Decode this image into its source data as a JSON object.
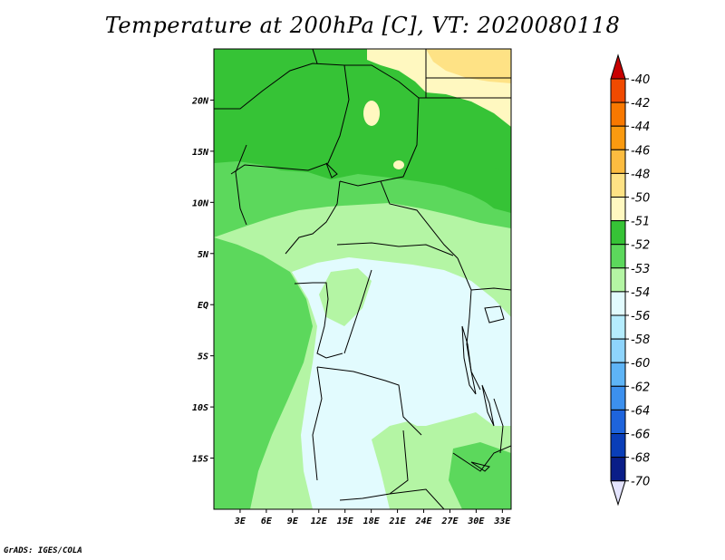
{
  "title": "Temperature at 200hPa [C], VT: 2020080118",
  "credit": "GrADS: IGES/COLA",
  "map": {
    "lon_range": [
      0,
      34
    ],
    "lat_range": [
      -20,
      25
    ],
    "lon_ticks": [
      {
        "value": 3,
        "label": "3E"
      },
      {
        "value": 6,
        "label": "6E"
      },
      {
        "value": 9,
        "label": "9E"
      },
      {
        "value": 12,
        "label": "12E"
      },
      {
        "value": 15,
        "label": "15E"
      },
      {
        "value": 18,
        "label": "18E"
      },
      {
        "value": 21,
        "label": "21E"
      },
      {
        "value": 24,
        "label": "24E"
      },
      {
        "value": 27,
        "label": "27E"
      },
      {
        "value": 30,
        "label": "30E"
      },
      {
        "value": 33,
        "label": "33E"
      }
    ],
    "lat_ticks": [
      {
        "value": 20,
        "label": "20N"
      },
      {
        "value": 15,
        "label": "15N"
      },
      {
        "value": 10,
        "label": "10N"
      },
      {
        "value": 5,
        "label": "5N"
      },
      {
        "value": 0,
        "label": "EQ"
      },
      {
        "value": -5,
        "label": "5S"
      },
      {
        "value": -10,
        "label": "10S"
      },
      {
        "value": -15,
        "label": "15S"
      }
    ]
  },
  "colorbar": {
    "levels": [
      {
        "label": "-40",
        "color": "#e01a00"
      },
      {
        "label": "-42",
        "color": "#f04a00"
      },
      {
        "label": "-44",
        "color": "#f87800"
      },
      {
        "label": "-46",
        "color": "#fa9a10"
      },
      {
        "label": "-48",
        "color": "#fcbc40"
      },
      {
        "label": "-50",
        "color": "#fee285"
      },
      {
        "label": "-51",
        "color": "#fff8c0"
      },
      {
        "label": "-52",
        "color": "#36c336"
      },
      {
        "label": "-53",
        "color": "#5cd85c"
      },
      {
        "label": "-54",
        "color": "#b4f5a4"
      },
      {
        "label": "-56",
        "color": "#e2fbfe"
      },
      {
        "label": "-58",
        "color": "#b5ecfe"
      },
      {
        "label": "-60",
        "color": "#8ed4fc"
      },
      {
        "label": "-62",
        "color": "#5eb4f6"
      },
      {
        "label": "-64",
        "color": "#3c90ee"
      },
      {
        "label": "-66",
        "color": "#1e64dc"
      },
      {
        "label": "-68",
        "color": "#0a3eb8"
      },
      {
        "label": "-70",
        "color": "#0a1e88"
      }
    ],
    "top_arrow_color": "#c80000",
    "bottom_arrow_color": "#e4e4fe"
  },
  "field_colors": {
    "warm": "#fee285",
    "pale_yellow": "#fff8c0",
    "dark_green": "#36c336",
    "mid_green": "#5cd85c",
    "light_green": "#b4f5a4",
    "pale_cyan": "#e2fbfe"
  }
}
